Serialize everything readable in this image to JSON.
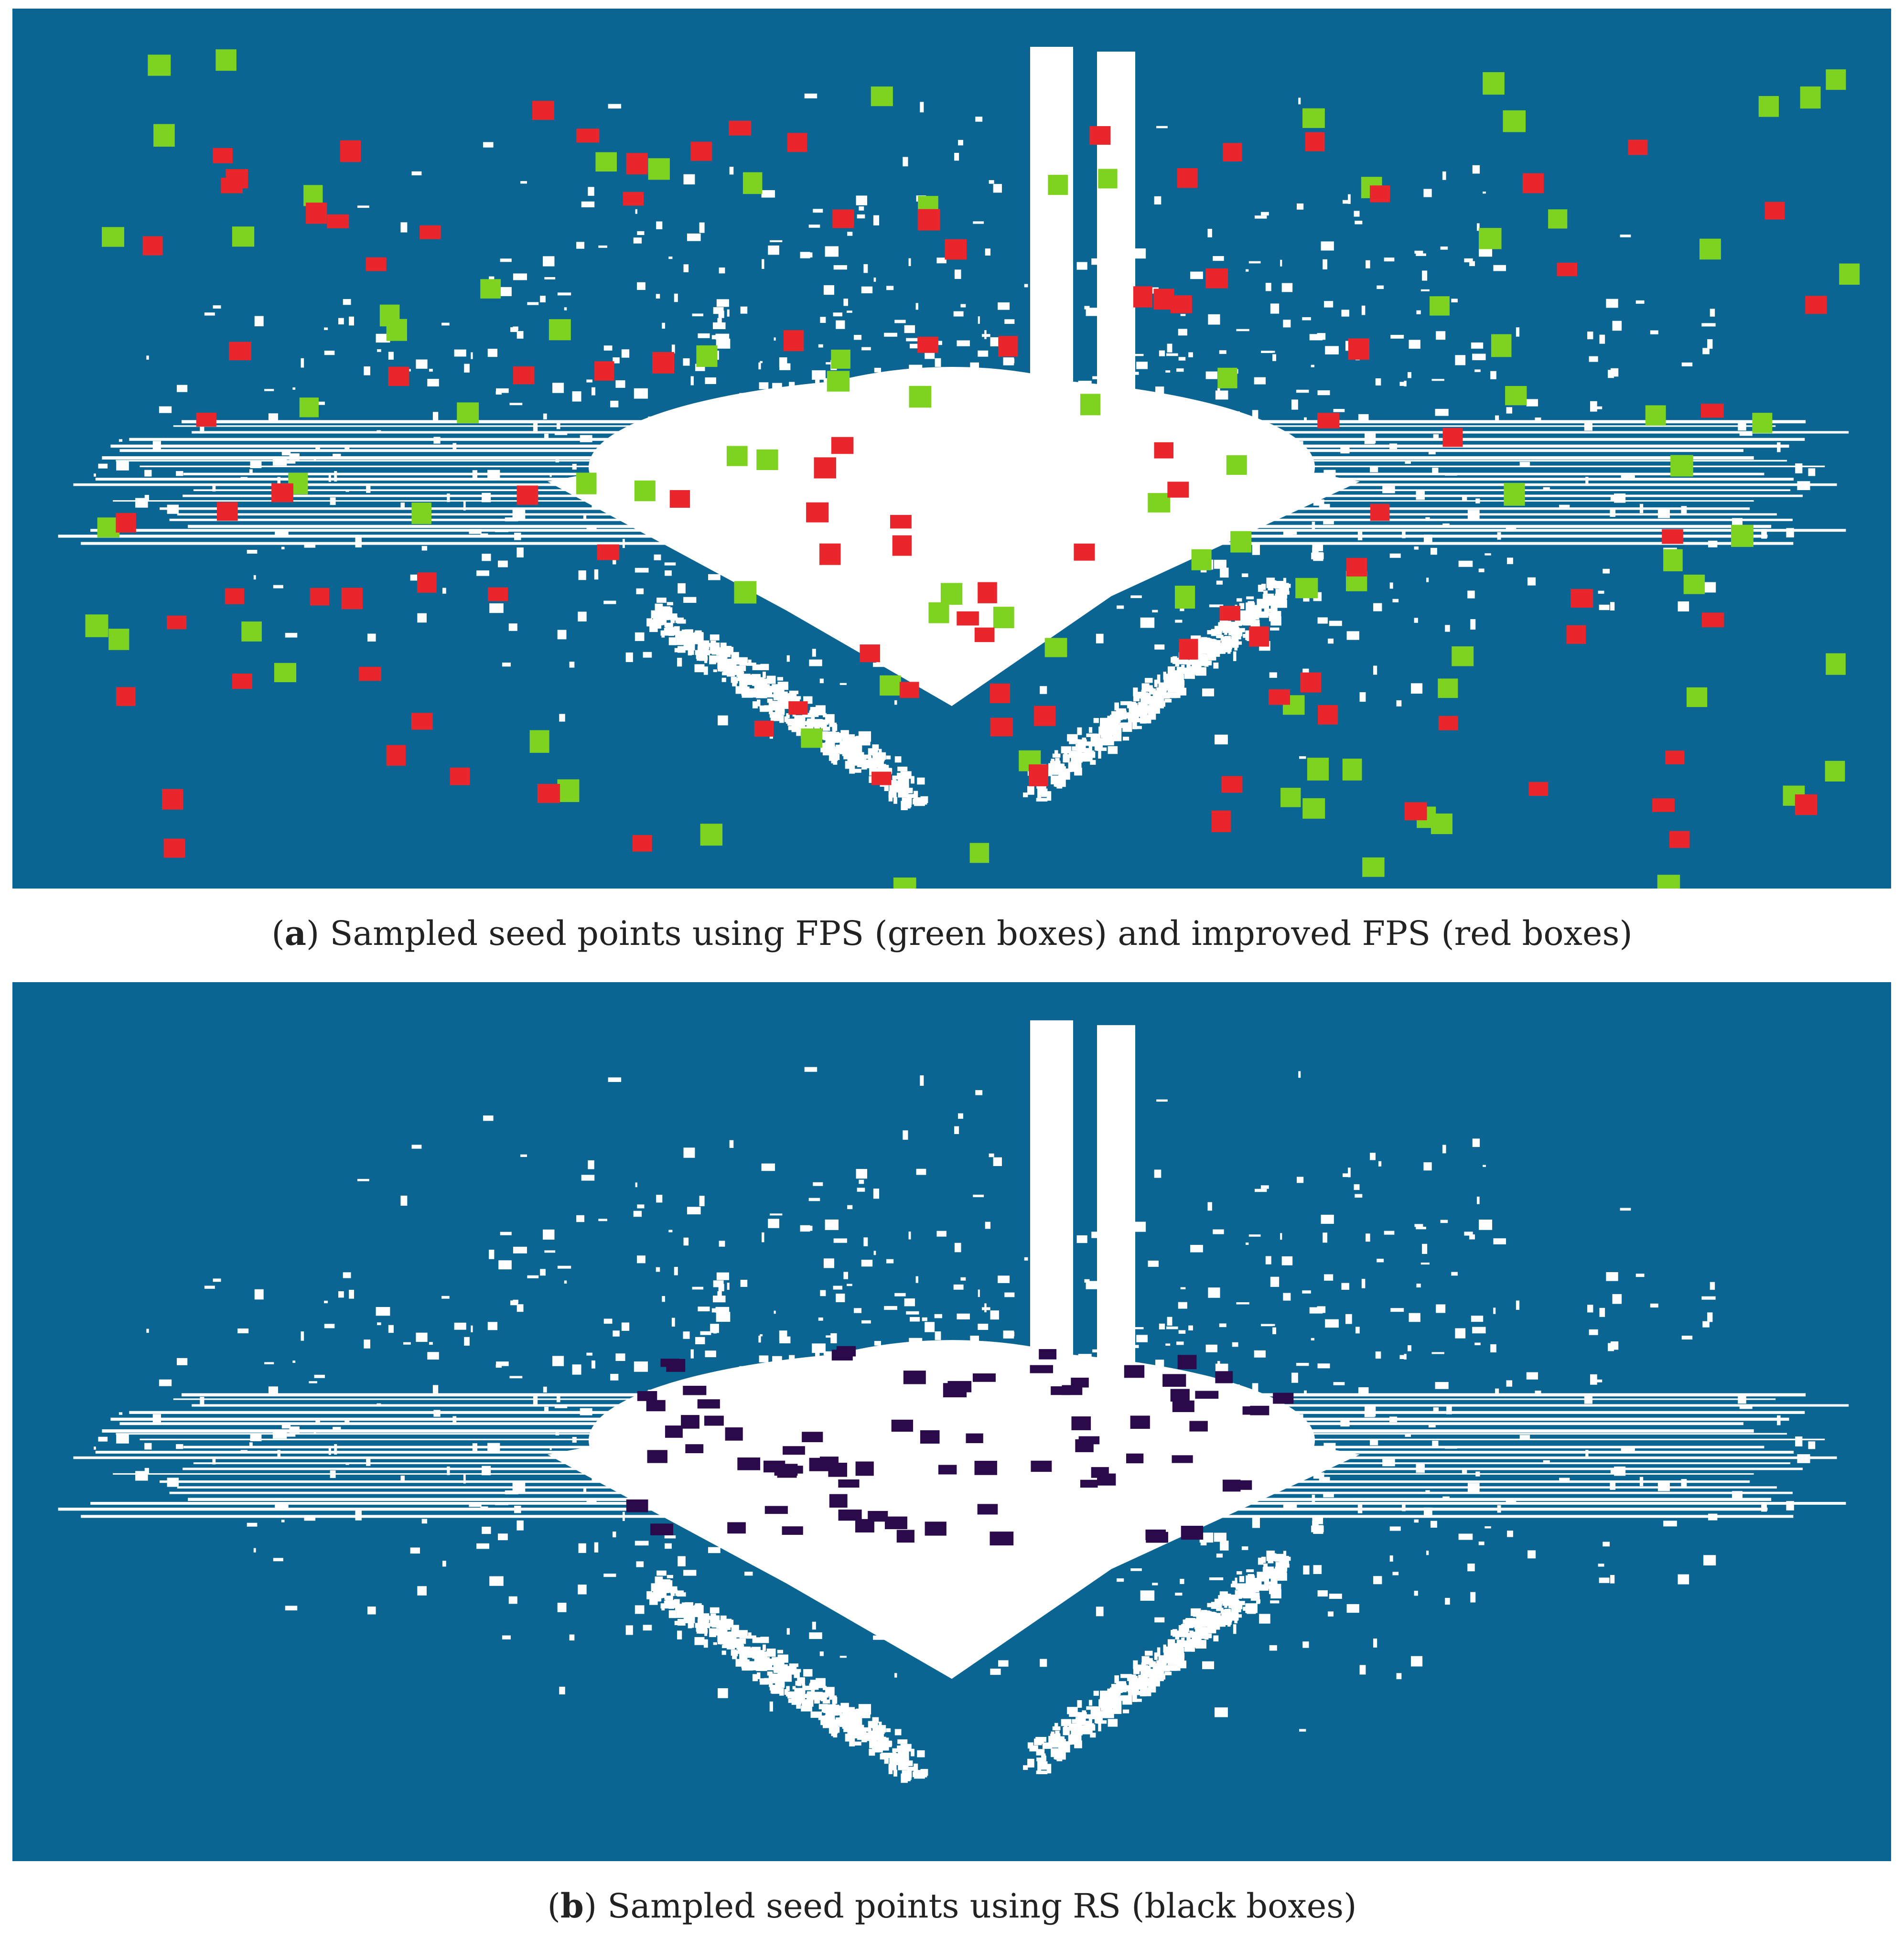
{
  "colors": {
    "background": "#0b6593",
    "cloud": "#ffffff",
    "fps_box": "#7ed321",
    "improved_fps_box": "#e8262c",
    "rs_box": "#2a0a4a",
    "caption_text": "#222222"
  },
  "panels": [
    {
      "id": "a",
      "caption_letter": "a",
      "caption_text": "Sampled seed points using FPS (green boxes) and improved FPS (red boxes)"
    },
    {
      "id": "b",
      "caption_letter": "b",
      "caption_text": "Sampled seed points using RS (black boxes)"
    }
  ]
}
